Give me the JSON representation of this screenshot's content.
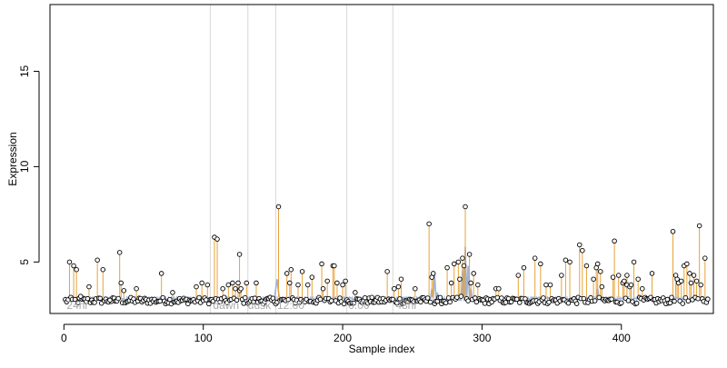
{
  "chart_data": {
    "type": "scatter",
    "xlabel": "Sample index",
    "ylabel": "Expression",
    "xlim": [
      -10,
      466
    ],
    "ylim": [
      2.3,
      18.5
    ],
    "x_ticks": [
      0,
      100,
      200,
      300,
      400
    ],
    "y_ticks": [
      5,
      10,
      15
    ],
    "baseline": 3,
    "colors": {
      "stem": "#e6a23a",
      "smooth_line": "#9fb3d6",
      "point_stroke": "#000000",
      "point_fill": "#ffffff",
      "vertical_line": "#d8d8d8",
      "annotation_text": "#aaaaaa",
      "axis": "#000000"
    },
    "vertical_markers": [
      105,
      132,
      152,
      203,
      236
    ],
    "annotations": [
      {
        "x": 2,
        "text": "24hr"
      },
      {
        "x": 107,
        "text": "dawn"
      },
      {
        "x": 132,
        "text": "dusk"
      },
      {
        "x": 153,
        "text": "12:00"
      },
      {
        "x": 204,
        "text": "0:00"
      },
      {
        "x": 238,
        "text": "48hr"
      }
    ],
    "highlight_points": [
      [
        4,
        5.0
      ],
      [
        7,
        4.8
      ],
      [
        9,
        4.6
      ],
      [
        12,
        3.2
      ],
      [
        18,
        3.7
      ],
      [
        24,
        5.1
      ],
      [
        28,
        4.6
      ],
      [
        33,
        3.0
      ],
      [
        40,
        5.5
      ],
      [
        41,
        3.9
      ],
      [
        43,
        3.5
      ],
      [
        52,
        3.6
      ],
      [
        70,
        4.4
      ],
      [
        78,
        3.4
      ],
      [
        95,
        3.7
      ],
      [
        99,
        3.9
      ],
      [
        103,
        3.8
      ],
      [
        108,
        6.3
      ],
      [
        110,
        6.2
      ],
      [
        114,
        3.6
      ],
      [
        118,
        3.8
      ],
      [
        121,
        3.9
      ],
      [
        123,
        3.6
      ],
      [
        125,
        3.9
      ],
      [
        126,
        3.5
      ],
      [
        127,
        3.6
      ],
      [
        126,
        5.4
      ],
      [
        131,
        3.9
      ],
      [
        138,
        3.9
      ],
      [
        154,
        7.9
      ],
      [
        160,
        4.4
      ],
      [
        162,
        3.9
      ],
      [
        163,
        4.6
      ],
      [
        168,
        3.8
      ],
      [
        171,
        4.5
      ],
      [
        175,
        3.8
      ],
      [
        178,
        4.2
      ],
      [
        185,
        4.9
      ],
      [
        186,
        3.6
      ],
      [
        189,
        4.0
      ],
      [
        193,
        4.8
      ],
      [
        194,
        4.8
      ],
      [
        196,
        3.9
      ],
      [
        200,
        3.8
      ],
      [
        202,
        4.0
      ],
      [
        209,
        3.4
      ],
      [
        232,
        4.5
      ],
      [
        237,
        3.6
      ],
      [
        240,
        3.7
      ],
      [
        242,
        4.1
      ],
      [
        252,
        3.6
      ],
      [
        262,
        7.0
      ],
      [
        264,
        4.2
      ],
      [
        265,
        4.4
      ],
      [
        275,
        4.7
      ],
      [
        278,
        3.9
      ],
      [
        280,
        4.9
      ],
      [
        283,
        5.0
      ],
      [
        284,
        4.1
      ],
      [
        285,
        3.2
      ],
      [
        286,
        5.2
      ],
      [
        287,
        4.8
      ],
      [
        288,
        7.9
      ],
      [
        291,
        5.4
      ],
      [
        292,
        3.9
      ],
      [
        294,
        4.4
      ],
      [
        297,
        3.8
      ],
      [
        310,
        3.6
      ],
      [
        312,
        3.6
      ],
      [
        326,
        4.3
      ],
      [
        330,
        4.7
      ],
      [
        338,
        5.2
      ],
      [
        342,
        4.9
      ],
      [
        346,
        3.8
      ],
      [
        349,
        3.8
      ],
      [
        357,
        4.3
      ],
      [
        360,
        5.1
      ],
      [
        363,
        5.0
      ],
      [
        370,
        5.9
      ],
      [
        372,
        5.6
      ],
      [
        375,
        4.8
      ],
      [
        380,
        4.1
      ],
      [
        382,
        4.7
      ],
      [
        383,
        4.9
      ],
      [
        385,
        4.5
      ],
      [
        386,
        3.7
      ],
      [
        394,
        4.2
      ],
      [
        395,
        6.1
      ],
      [
        398,
        4.3
      ],
      [
        401,
        3.9
      ],
      [
        402,
        4.0
      ],
      [
        404,
        3.8
      ],
      [
        404,
        4.3
      ],
      [
        406,
        3.7
      ],
      [
        407,
        3.8
      ],
      [
        409,
        5.0
      ],
      [
        412,
        4.1
      ],
      [
        415,
        3.6
      ],
      [
        422,
        4.4
      ],
      [
        437,
        6.6
      ],
      [
        439,
        4.3
      ],
      [
        440,
        4.1
      ],
      [
        441,
        3.9
      ],
      [
        443,
        4.0
      ],
      [
        445,
        4.8
      ],
      [
        447,
        4.9
      ],
      [
        449,
        4.4
      ],
      [
        450,
        3.9
      ],
      [
        452,
        4.3
      ],
      [
        454,
        4.0
      ],
      [
        456,
        6.9
      ],
      [
        457,
        3.8
      ],
      [
        460,
        5.2
      ]
    ],
    "smooth_peaks": [
      [
        150,
        3.0
      ],
      [
        152,
        3.6
      ],
      [
        153,
        4.1
      ],
      [
        154,
        3.4
      ],
      [
        156,
        3.0
      ],
      [
        262,
        3.0
      ],
      [
        264,
        3.6
      ],
      [
        266,
        4.3
      ],
      [
        268,
        3.4
      ],
      [
        270,
        3.0
      ],
      [
        284,
        3.0
      ],
      [
        286,
        4.6
      ],
      [
        288,
        5.8
      ],
      [
        290,
        4.8
      ],
      [
        292,
        3.6
      ],
      [
        294,
        3.0
      ],
      [
        380,
        3.0
      ],
      [
        383,
        3.6
      ],
      [
        386,
        3.0
      ]
    ]
  }
}
